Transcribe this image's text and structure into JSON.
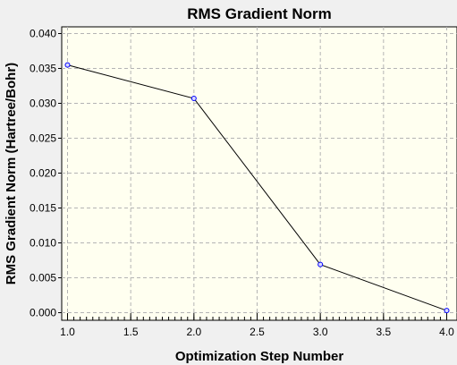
{
  "chart_data": {
    "type": "line",
    "title": "RMS Gradient Norm",
    "xlabel": "Optimization Step Number",
    "ylabel": "RMS Gradient Norm (Hartree/Bohr)",
    "x": [
      1,
      2,
      3,
      4
    ],
    "series": [
      {
        "values": [
          0.0355,
          0.0307,
          0.0069,
          0.0003
        ]
      }
    ],
    "xlim": [
      1.0,
      4.0
    ],
    "ylim": [
      0,
      0.04
    ],
    "xticks": [
      1.0,
      1.5,
      2.0,
      2.5,
      3.0,
      3.5,
      4.0
    ],
    "xtick_labels": [
      "1.0",
      "1.5",
      "2.0",
      "2.5",
      "3.0",
      "3.5",
      "4.0"
    ],
    "yticks": [
      0,
      0.005,
      0.01,
      0.015,
      0.02,
      0.025,
      0.03,
      0.035,
      0.04
    ],
    "ytick_labels": [
      "0.000",
      "0.005",
      "0.010",
      "0.015",
      "0.020",
      "0.025",
      "0.030",
      "0.035",
      "0.040"
    ],
    "grid": true,
    "colors": {
      "plot_background": "#fffff0",
      "line": "#000000",
      "marker": "#0000ff",
      "grid": "#b4b4b4"
    }
  }
}
